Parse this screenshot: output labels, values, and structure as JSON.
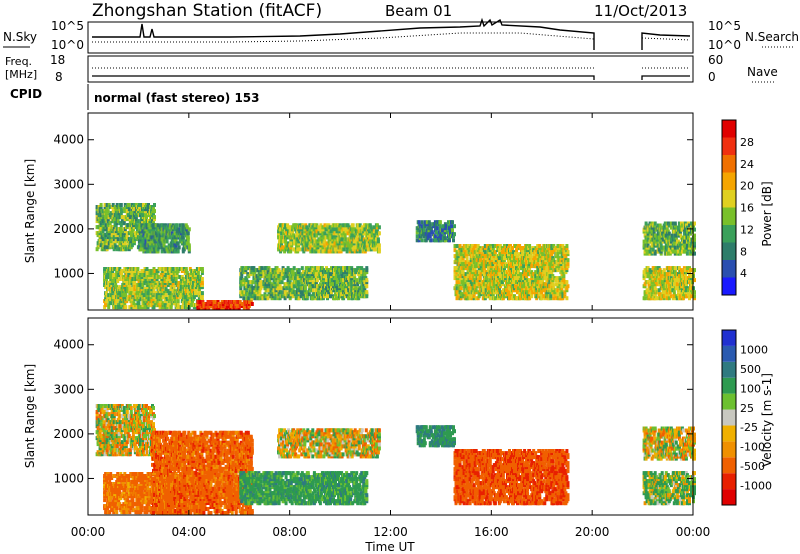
{
  "header": {
    "station": "Zhongshan Station (fitACF)",
    "beam": "Beam 01",
    "date": "11/Oct/2013"
  },
  "chart_data": [
    {
      "type": "line",
      "panel": "noise",
      "left_label": "N.Sky",
      "right_label": "N.Search",
      "left_ticks": [
        "10^5",
        "10^0"
      ],
      "right_ticks": [
        "10^5",
        "10^0"
      ],
      "note": "sky noise (solid) and search noise (dotted); data gap 20:00-22:00"
    },
    {
      "type": "line",
      "panel": "frequency",
      "left_label_lines": [
        "Freq.",
        "[MHz]"
      ],
      "right_label": "Nave",
      "left_ticks": [
        "18",
        "8"
      ],
      "right_ticks": [
        "60",
        "0"
      ],
      "ylim_freq": [
        8,
        18
      ],
      "ylim_nave": [
        0,
        60
      ]
    },
    {
      "type": "table",
      "panel": "cpid",
      "label": "CPID",
      "value": "normal (fast stereo) 153"
    },
    {
      "type": "heatmap",
      "panel": "power",
      "ylabel": "Slant Range [km]",
      "yticks": [
        1000,
        2000,
        3000,
        4000
      ],
      "ylim": [
        180,
        4600
      ],
      "xlim_hours": [
        0,
        24
      ],
      "colorbar_label": "Power [dB]",
      "colorbar_ticks": [
        4,
        8,
        12,
        16,
        20,
        24,
        28
      ],
      "colorbar_range": [
        0,
        30
      ],
      "colors": [
        "#1a1aff",
        "#2a4fb0",
        "#2e7d6a",
        "#3aa05a",
        "#79c02a",
        "#e0d020",
        "#f5a500",
        "#f07000",
        "#f03010",
        "#e00000"
      ],
      "regions": [
        {
          "t": [
            0.3,
            2.6
          ],
          "r": [
            1500,
            2500
          ],
          "pw": 12
        },
        {
          "t": [
            0.6,
            4.5
          ],
          "r": [
            200,
            1100
          ],
          "pw": 14
        },
        {
          "t": [
            4.3,
            6.5
          ],
          "r": [
            180,
            350
          ],
          "pw": 26
        },
        {
          "t": [
            2.0,
            4.0
          ],
          "r": [
            1450,
            2050
          ],
          "pw": 10
        },
        {
          "t": [
            7.5,
            11.5
          ],
          "r": [
            1450,
            2050
          ],
          "pw": 14
        },
        {
          "t": [
            6.0,
            11.0
          ],
          "r": [
            400,
            1100
          ],
          "pw": 12
        },
        {
          "t": [
            13.0,
            14.5
          ],
          "r": [
            1700,
            2150
          ],
          "pw": 8
        },
        {
          "t": [
            14.5,
            19.0
          ],
          "r": [
            400,
            1600
          ],
          "pw": 16
        },
        {
          "t": [
            22.0,
            24.0
          ],
          "r": [
            1400,
            2100
          ],
          "pw": 12
        },
        {
          "t": [
            22.0,
            24.0
          ],
          "r": [
            400,
            1100
          ],
          "pw": 16
        }
      ]
    },
    {
      "type": "heatmap",
      "panel": "velocity",
      "ylabel": "Slant Range [km]",
      "yticks": [
        1000,
        2000,
        3000,
        4000
      ],
      "ylim": [
        180,
        4600
      ],
      "xlim_hours": [
        0,
        24
      ],
      "xticks": [
        "00:00",
        "04:00",
        "08:00",
        "12:00",
        "16:00",
        "20:00",
        "00:00"
      ],
      "xlabel": "Time UT",
      "colorbar_label": "Velocity [m s-1]",
      "colorbar_ticks": [
        "1000",
        "500",
        "100",
        "25",
        "-25",
        "-100",
        "-500",
        "-1000"
      ],
      "colors": [
        "#2030d0",
        "#2a5ab0",
        "#2f7a80",
        "#2e9a50",
        "#6cc030",
        "#c8c8c0",
        "#f0b000",
        "#f09000",
        "#f06000",
        "#e82000",
        "#e00000"
      ],
      "regions": [
        {
          "t": [
            0.3,
            2.6
          ],
          "r": [
            1500,
            2600
          ],
          "v": 0
        },
        {
          "t": [
            0.6,
            4.5
          ],
          "r": [
            200,
            1100
          ],
          "v": -150
        },
        {
          "t": [
            2.5,
            6.5
          ],
          "r": [
            180,
            2000
          ],
          "v": -200
        },
        {
          "t": [
            7.5,
            11.5
          ],
          "r": [
            1450,
            2050
          ],
          "v": 0
        },
        {
          "t": [
            6.0,
            11.0
          ],
          "r": [
            400,
            1100
          ],
          "v": 200
        },
        {
          "t": [
            13.0,
            14.5
          ],
          "r": [
            1700,
            2150
          ],
          "v": 250
        },
        {
          "t": [
            14.5,
            19.0
          ],
          "r": [
            400,
            1600
          ],
          "v": -250
        },
        {
          "t": [
            22.0,
            24.0
          ],
          "r": [
            1400,
            2100
          ],
          "v": 0
        },
        {
          "t": [
            22.0,
            24.0
          ],
          "r": [
            400,
            1100
          ],
          "v": 100
        }
      ]
    }
  ]
}
